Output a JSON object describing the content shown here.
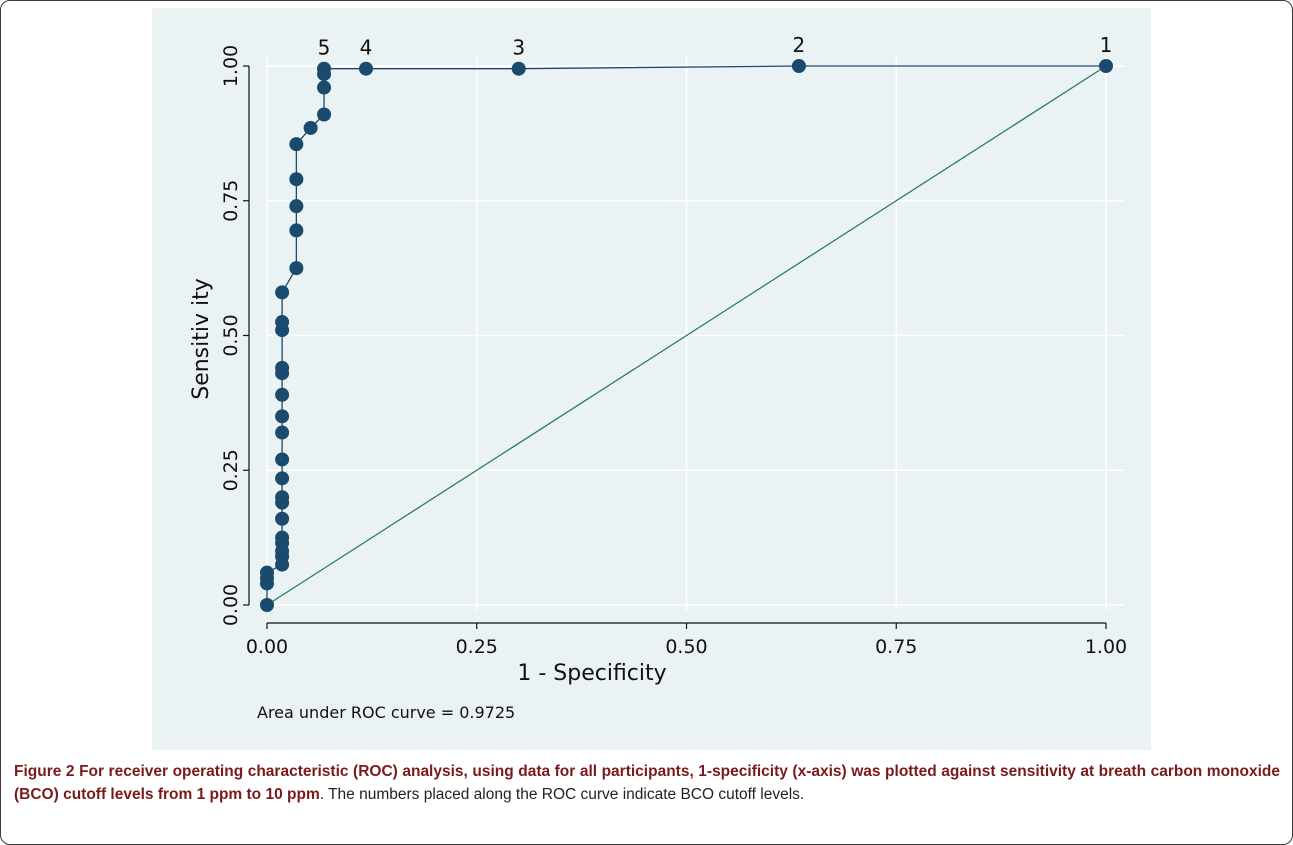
{
  "chart_data": {
    "type": "line",
    "xlabel": "1 - Specificity",
    "ylabel": "Sensitiv ity",
    "xlim": [
      0,
      1
    ],
    "ylim": [
      0,
      1
    ],
    "x_ticks": [
      "0.00",
      "0.25",
      "0.50",
      "0.75",
      "1.00"
    ],
    "y_ticks": [
      "0.00",
      "0.25",
      "0.50",
      "0.75",
      "1.00"
    ],
    "grid": true,
    "annotation": "Area under ROC curve = 0.9725",
    "series": [
      {
        "points": [
          [
            0.0,
            0.0
          ],
          [
            0.0,
            0.04
          ],
          [
            0.0,
            0.05
          ],
          [
            0.0,
            0.06
          ],
          [
            0.018,
            0.075
          ],
          [
            0.018,
            0.09
          ],
          [
            0.018,
            0.1
          ],
          [
            0.018,
            0.115
          ],
          [
            0.018,
            0.125
          ],
          [
            0.018,
            0.16
          ],
          [
            0.018,
            0.19
          ],
          [
            0.018,
            0.2
          ],
          [
            0.018,
            0.235
          ],
          [
            0.018,
            0.27
          ],
          [
            0.018,
            0.32
          ],
          [
            0.018,
            0.35
          ],
          [
            0.018,
            0.39
          ],
          [
            0.018,
            0.43
          ],
          [
            0.018,
            0.44
          ],
          [
            0.018,
            0.51
          ],
          [
            0.018,
            0.525
          ],
          [
            0.018,
            0.58
          ],
          [
            0.035,
            0.625
          ],
          [
            0.035,
            0.695
          ],
          [
            0.035,
            0.74
          ],
          [
            0.035,
            0.79
          ],
          [
            0.035,
            0.855
          ],
          [
            0.052,
            0.885
          ],
          [
            0.068,
            0.91
          ],
          [
            0.068,
            0.96
          ],
          [
            0.068,
            0.985
          ],
          [
            0.068,
            0.995
          ],
          [
            0.118,
            0.995
          ],
          [
            0.3,
            0.995
          ],
          [
            0.634,
            1.0
          ],
          [
            1.0,
            1.0
          ]
        ]
      }
    ],
    "reference_line": [
      [
        0,
        0
      ],
      [
        1,
        1
      ]
    ],
    "point_labels": [
      {
        "text": "1",
        "x": 1.0,
        "y": 1.0
      },
      {
        "text": "2",
        "x": 0.634,
        "y": 1.0
      },
      {
        "text": "3",
        "x": 0.3,
        "y": 0.995
      },
      {
        "text": "4",
        "x": 0.118,
        "y": 0.995
      },
      {
        "text": "5",
        "x": 0.068,
        "y": 0.995
      }
    ],
    "colors": {
      "panel": "#eaf2f3",
      "grid": "#ffffff",
      "curve": "#1a4a6e",
      "marker": "#1a4a6e",
      "reference": "#2e7d5b"
    }
  },
  "caption": {
    "label": "Figure 2",
    "bold_text": "For receiver operating characteristic (ROC) analysis, using data for all participants, 1-specificity (x-axis) was plotted against sensitivity at breath carbon monoxide (BCO) cutoff levels from 1 ppm to 10 ppm",
    "rest_text": ". The numbers placed along the ROC curve indicate BCO cutoff levels."
  }
}
